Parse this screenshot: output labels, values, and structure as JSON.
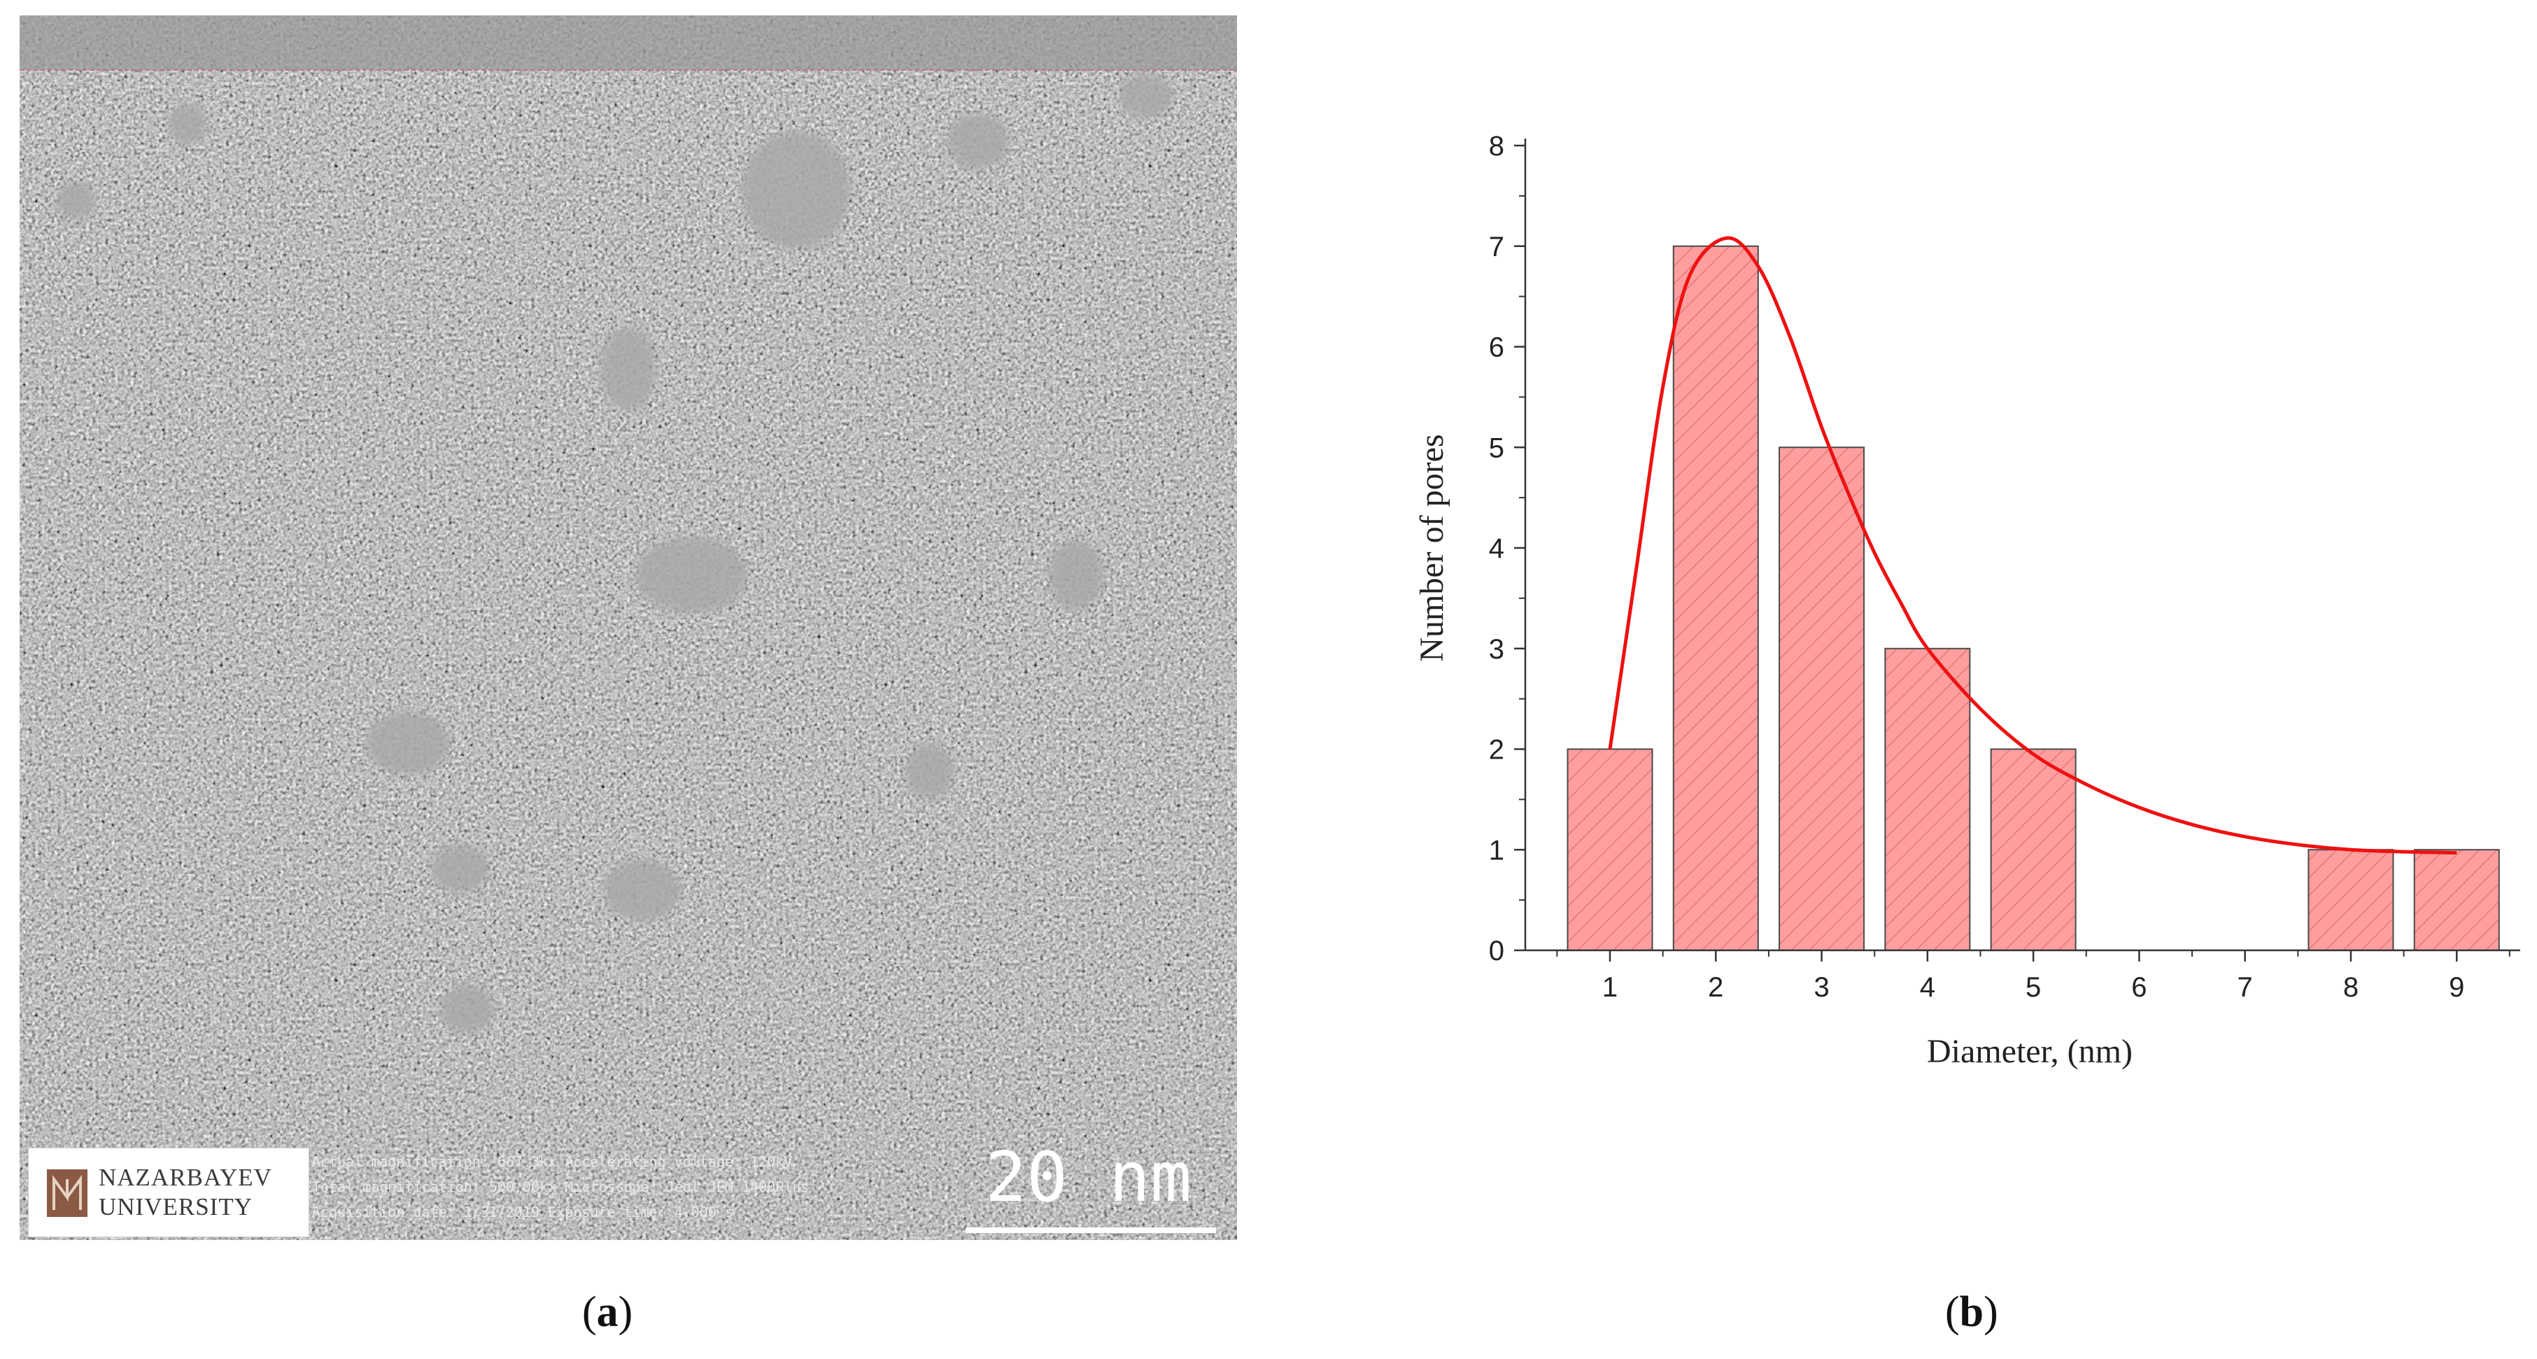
{
  "panel_a": {
    "logo": {
      "line1": "NAZARBAYEV",
      "line2": "UNIVERSITY"
    },
    "metadata": [
      "Actual magnification: 667.3kx Accelerating voltage: 120kV",
      "Total magnification: 500.00kx Microscope: Jeol JEM 1400Plus",
      "Acquisition date: 1/31/2019   Exposure time: 4.000 s"
    ],
    "scale_label": "20 nm",
    "caption": "a"
  },
  "panel_b": {
    "caption": "b"
  },
  "chart_data": {
    "type": "bar",
    "categories": [
      "1",
      "2",
      "3",
      "4",
      "5",
      "6",
      "7",
      "8",
      "9"
    ],
    "x": [
      1,
      2,
      3,
      4,
      5,
      6,
      7,
      8,
      9
    ],
    "values": [
      2,
      7,
      5,
      3,
      2,
      0,
      0,
      1,
      1
    ],
    "fit_curve": {
      "type": "line",
      "points": [
        [
          1.0,
          2.0
        ],
        [
          1.25,
          3.8
        ],
        [
          1.5,
          5.6
        ],
        [
          1.75,
          6.7
        ],
        [
          2.1,
          7.08
        ],
        [
          2.4,
          6.8
        ],
        [
          2.7,
          6.1
        ],
        [
          3.0,
          5.2
        ],
        [
          3.25,
          4.55
        ],
        [
          3.5,
          3.95
        ],
        [
          3.75,
          3.45
        ],
        [
          4.0,
          3.0
        ],
        [
          4.5,
          2.4
        ],
        [
          5.0,
          1.95
        ],
        [
          5.5,
          1.65
        ],
        [
          6.0,
          1.42
        ],
        [
          6.5,
          1.25
        ],
        [
          7.0,
          1.13
        ],
        [
          7.5,
          1.05
        ],
        [
          8.0,
          1.0
        ],
        [
          8.5,
          0.98
        ],
        [
          9.0,
          0.97
        ]
      ]
    },
    "xlabel": "Diameter, (nm)",
    "ylabel": "Number of pores",
    "xticks": [
      1,
      2,
      3,
      4,
      5,
      6,
      7,
      8,
      9
    ],
    "yticks": [
      0,
      1,
      2,
      3,
      4,
      5,
      6,
      7,
      8
    ],
    "xlim": [
      0.2,
      9.6
    ],
    "ylim": [
      0,
      8
    ],
    "grid": false,
    "bar_color": "#ff9e9e",
    "bar_hatch_color": "#d96d6d",
    "curve_color": "#ee1111"
  }
}
